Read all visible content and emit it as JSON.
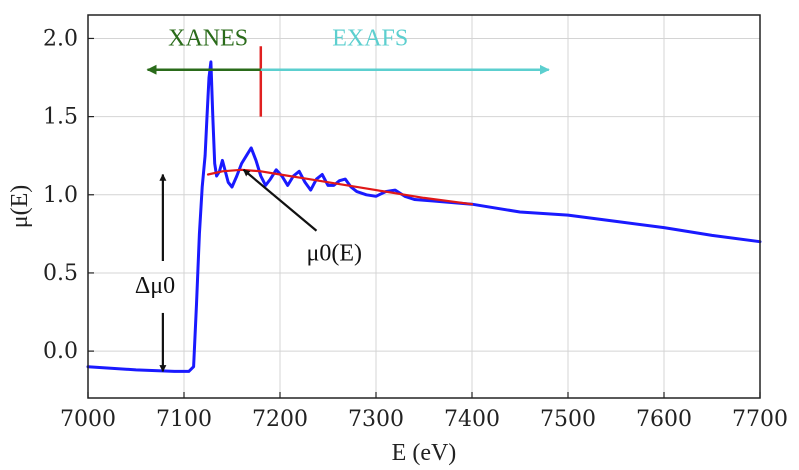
{
  "chart_data": {
    "type": "line",
    "xlabel": "E (eV)",
    "ylabel": "μ(E)",
    "xlim": [
      7000,
      7700
    ],
    "ylim": [
      -0.3,
      2.15
    ],
    "x_ticks": [
      7000,
      7100,
      7200,
      7300,
      7400,
      7500,
      7600,
      7700
    ],
    "y_ticks": [
      0.0,
      0.5,
      1.0,
      1.5,
      2.0
    ],
    "x_tick_labels": [
      "7000",
      "7100",
      "7200",
      "7300",
      "7400",
      "7500",
      "7600",
      "7700"
    ],
    "y_tick_labels": [
      "0.0",
      "0.5",
      "1.0",
      "1.5",
      "2.0"
    ],
    "grid": true,
    "series": [
      {
        "role": "measured",
        "color": "#1a1aff",
        "x": [
          7000,
          7050,
          7090,
          7105,
          7110,
          7113,
          7116,
          7119,
          7122,
          7124,
          7126,
          7128,
          7130,
          7132,
          7134,
          7137,
          7140,
          7143,
          7146,
          7150,
          7155,
          7160,
          7165,
          7170,
          7175,
          7180,
          7185,
          7190,
          7196,
          7202,
          7208,
          7214,
          7220,
          7226,
          7232,
          7238,
          7244,
          7250,
          7256,
          7262,
          7268,
          7274,
          7280,
          7290,
          7300,
          7310,
          7320,
          7330,
          7340,
          7360,
          7380,
          7400,
          7450,
          7500,
          7550,
          7600,
          7650,
          7700
        ],
        "y": [
          -0.1,
          -0.12,
          -0.13,
          -0.13,
          -0.1,
          0.3,
          0.75,
          1.05,
          1.25,
          1.5,
          1.75,
          1.85,
          1.5,
          1.2,
          1.12,
          1.15,
          1.22,
          1.15,
          1.08,
          1.05,
          1.12,
          1.2,
          1.25,
          1.3,
          1.22,
          1.12,
          1.06,
          1.1,
          1.16,
          1.12,
          1.06,
          1.12,
          1.15,
          1.08,
          1.03,
          1.1,
          1.13,
          1.06,
          1.06,
          1.09,
          1.1,
          1.05,
          1.02,
          1.0,
          0.99,
          1.02,
          1.03,
          0.99,
          0.97,
          0.96,
          0.95,
          0.94,
          0.89,
          0.87,
          0.83,
          0.79,
          0.74,
          0.7
        ]
      },
      {
        "role": "background",
        "color": "#e01818",
        "x": [
          7125,
          7140,
          7160,
          7180,
          7200,
          7230,
          7260,
          7300,
          7350,
          7400
        ],
        "y": [
          1.13,
          1.15,
          1.16,
          1.15,
          1.13,
          1.1,
          1.07,
          1.03,
          0.98,
          0.94
        ]
      }
    ],
    "annotations": {
      "xanes": {
        "text": "XANES",
        "color": "#2a6b1a",
        "x_from": 7180,
        "x_to": 7062,
        "y": 1.8
      },
      "exafs": {
        "text": "EXAFS",
        "color": "#5ccfcf",
        "x_from": 7180,
        "x_to": 7480,
        "y": 1.8
      },
      "divider": {
        "x": 7180,
        "y_from": 1.5,
        "y_to": 1.95,
        "color": "#e02020"
      },
      "delta_mu": {
        "text": "Δμ0",
        "x": 7078,
        "y_from": -0.13,
        "y_to": 1.13
      },
      "mu0": {
        "text": "μ0(E)",
        "arrow_from": [
          7238,
          0.77
        ],
        "arrow_to": [
          7162,
          1.16
        ]
      }
    }
  }
}
